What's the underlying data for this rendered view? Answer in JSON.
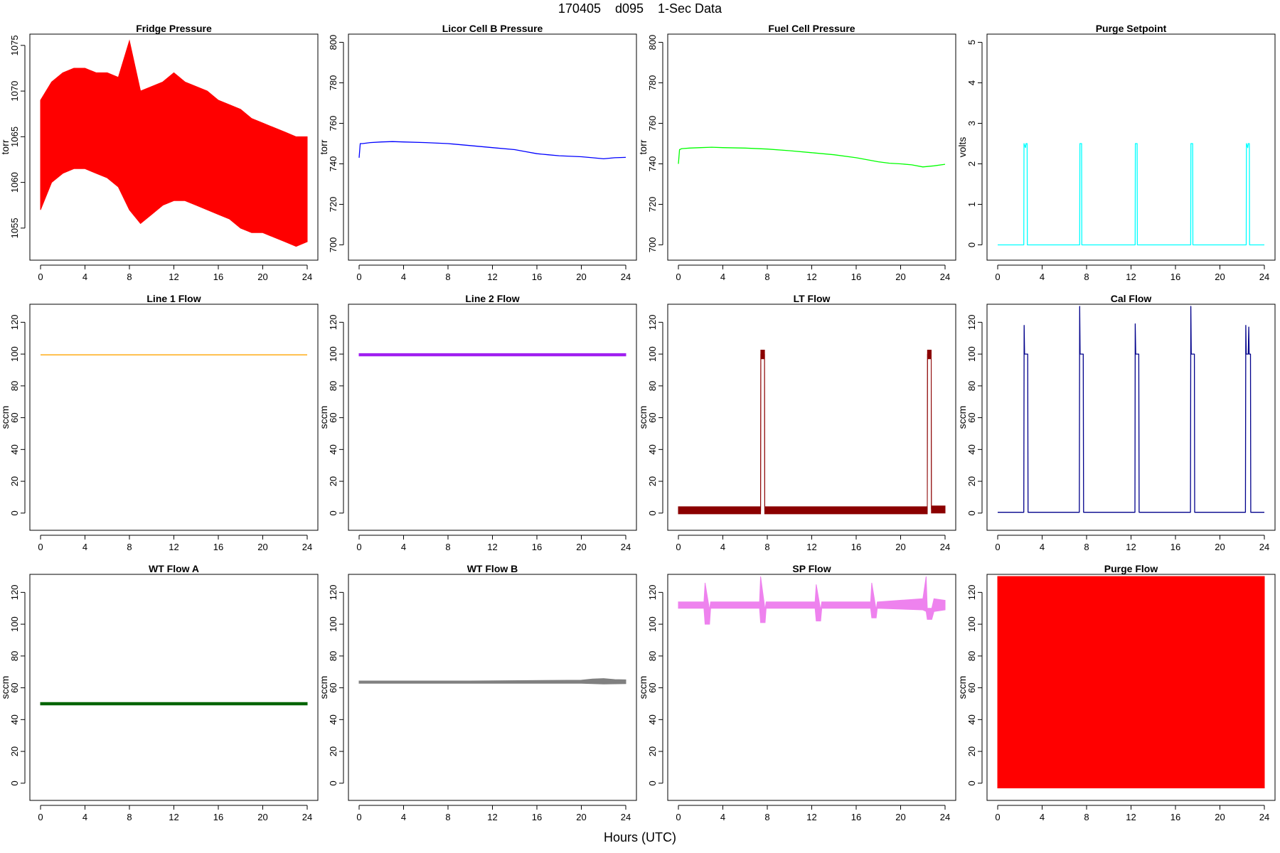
{
  "figure": {
    "title": "170405    d095    1-Sec Data",
    "xlabel": "Hours (UTC)"
  },
  "chart_data": [
    {
      "type": "line",
      "title": "Fridge Pressure",
      "ylabel": "torr",
      "color": "#ff0000",
      "xlim": [
        0,
        24
      ],
      "ylim": [
        1052.5,
        1076
      ],
      "xticks": [
        0,
        4,
        8,
        12,
        16,
        20,
        24
      ],
      "yticks": [
        1055,
        1060,
        1065,
        1070,
        1075
      ],
      "style": "band",
      "x": [
        0,
        1,
        2,
        3,
        4,
        5,
        6,
        7,
        8,
        9,
        10,
        11,
        12,
        13,
        14,
        15,
        16,
        17,
        18,
        19,
        20,
        21,
        22,
        23,
        24
      ],
      "y": [
        1065,
        1065.5,
        1066,
        1066,
        1066.5,
        1066,
        1065.5,
        1065,
        1063,
        1061.5,
        1062.5,
        1063,
        1063.5,
        1063,
        1062.5,
        1062,
        1061.5,
        1061,
        1060.5,
        1060,
        1060,
        1059.5,
        1059,
        1058.5,
        1058.5
      ],
      "y_min": [
        1057,
        1060,
        1061,
        1061.5,
        1061.5,
        1061,
        1060.5,
        1059.5,
        1057,
        1055.5,
        1056.5,
        1057.5,
        1058,
        1058,
        1057.5,
        1057,
        1056.5,
        1056,
        1055,
        1054.5,
        1054.5,
        1054,
        1053.5,
        1053,
        1053.5
      ],
      "y_max": [
        1069,
        1071,
        1072,
        1072.5,
        1072.5,
        1072,
        1072,
        1071.5,
        1075.5,
        1070,
        1070.5,
        1071,
        1072,
        1071,
        1070.5,
        1070,
        1069,
        1068.5,
        1068,
        1067,
        1066.5,
        1066,
        1065.5,
        1065,
        1065
      ]
    },
    {
      "type": "line",
      "title": "Licor Cell B Pressure",
      "ylabel": "torr",
      "color": "#0000ff",
      "xlim": [
        0,
        24
      ],
      "ylim": [
        697,
        803
      ],
      "xticks": [
        0,
        4,
        8,
        12,
        16,
        20,
        24
      ],
      "yticks": [
        700,
        720,
        740,
        760,
        780,
        800
      ],
      "x": [
        0,
        0.1,
        0.3,
        1,
        2,
        3,
        4,
        6,
        8,
        10,
        12,
        14,
        15,
        16,
        17,
        18,
        20,
        21,
        22,
        23,
        24
      ],
      "y": [
        743,
        750,
        750,
        750.5,
        750.8,
        751,
        750.8,
        750.5,
        750,
        749,
        748,
        747,
        746,
        745,
        744.5,
        744,
        743.5,
        743,
        742.5,
        743,
        743.2
      ]
    },
    {
      "type": "line",
      "title": "Fuel Cell Pressure",
      "ylabel": "torr",
      "color": "#00ff00",
      "xlim": [
        0,
        24
      ],
      "ylim": [
        697,
        803
      ],
      "xticks": [
        0,
        4,
        8,
        12,
        16,
        20,
        24
      ],
      "yticks": [
        700,
        720,
        740,
        760,
        780,
        800
      ],
      "x": [
        0,
        0.1,
        0.3,
        1,
        2,
        3,
        4,
        6,
        8,
        10,
        12,
        14,
        16,
        18,
        19,
        20,
        21,
        22,
        23,
        24
      ],
      "y": [
        740,
        747,
        747.5,
        747.8,
        748,
        748.2,
        748,
        747.8,
        747.3,
        746.5,
        745.5,
        744.5,
        743,
        741,
        740.3,
        740,
        739.5,
        738.5,
        739,
        739.8
      ]
    },
    {
      "type": "line",
      "title": "Purge Setpoint",
      "ylabel": "volts",
      "color": "#00ffff",
      "xlim": [
        0,
        24
      ],
      "ylim": [
        -0.15,
        5.15
      ],
      "xticks": [
        0,
        4,
        8,
        12,
        16,
        20,
        24
      ],
      "yticks": [
        0,
        1,
        2,
        3,
        4,
        5
      ],
      "x": [
        0,
        2.35,
        2.37,
        2.5,
        2.55,
        2.65,
        2.67,
        7.38,
        7.4,
        7.55,
        7.57,
        12.37,
        12.39,
        12.55,
        12.57,
        17.37,
        17.39,
        17.55,
        17.57,
        22.37,
        22.39,
        22.5,
        22.55,
        22.65,
        22.67,
        24
      ],
      "y": [
        0,
        0,
        2.5,
        2.4,
        2.5,
        2.5,
        0,
        0,
        2.5,
        2.5,
        0,
        0,
        2.5,
        2.5,
        0,
        0,
        2.5,
        2.5,
        0,
        0,
        2.5,
        2.4,
        2.5,
        2.5,
        0,
        0
      ]
    },
    {
      "type": "line",
      "title": "Line 1 Flow",
      "ylabel": "sccm",
      "color": "#ffa500",
      "xlim": [
        0,
        24
      ],
      "ylim": [
        -5,
        130
      ],
      "xticks": [
        0,
        4,
        8,
        12,
        16,
        20,
        24
      ],
      "yticks": [
        0,
        20,
        40,
        60,
        80,
        100,
        120
      ],
      "x": [
        0,
        24
      ],
      "y": [
        99.5,
        99.5
      ]
    },
    {
      "type": "line",
      "title": "Line 2 Flow",
      "ylabel": "sccm",
      "color": "#a020f0",
      "xlim": [
        0,
        24
      ],
      "ylim": [
        -5,
        130
      ],
      "xticks": [
        0,
        4,
        8,
        12,
        16,
        20,
        24
      ],
      "yticks": [
        0,
        20,
        40,
        60,
        80,
        100,
        120
      ],
      "style": "band",
      "x": [
        0,
        24
      ],
      "y": [
        99.5,
        99.5
      ],
      "y_min": [
        98.8,
        98.8
      ],
      "y_max": [
        100.3,
        100.3
      ]
    },
    {
      "type": "line",
      "title": "LT Flow",
      "ylabel": "sccm",
      "color": "#8b0000",
      "xlim": [
        0,
        24
      ],
      "ylim": [
        -5,
        130
      ],
      "xticks": [
        0,
        4,
        8,
        12,
        16,
        20,
        24
      ],
      "yticks": [
        0,
        20,
        40,
        60,
        80,
        100,
        120
      ],
      "style": "band",
      "x": [
        0,
        7.4,
        7.42,
        7.75,
        7.77,
        22.4,
        22.42,
        22.75,
        22.77,
        24
      ],
      "y": [
        1.5,
        1.5,
        100,
        100,
        2,
        2,
        100,
        100,
        2.5,
        2.5
      ],
      "y_min": [
        -0.5,
        -0.5,
        97,
        97,
        -0.5,
        -0.5,
        97,
        97,
        0,
        0
      ],
      "y_max": [
        4,
        4,
        102.5,
        102.5,
        4,
        4,
        102.5,
        102.5,
        4.5,
        4.5
      ]
    },
    {
      "type": "line",
      "title": "Cal Flow",
      "ylabel": "sccm",
      "color": "#00008b",
      "xlim": [
        0,
        24
      ],
      "ylim": [
        -5,
        130
      ],
      "xticks": [
        0,
        4,
        8,
        12,
        16,
        20,
        24
      ],
      "yticks": [
        0,
        20,
        40,
        60,
        80,
        100,
        120
      ],
      "x": [
        0,
        2.35,
        2.38,
        2.42,
        2.5,
        2.7,
        2.73,
        7.35,
        7.38,
        7.42,
        7.5,
        7.7,
        7.73,
        12.35,
        12.38,
        12.42,
        12.5,
        12.7,
        12.73,
        17.35,
        17.38,
        17.42,
        17.5,
        17.7,
        17.73,
        22.3,
        22.33,
        22.37,
        22.45,
        22.55,
        22.6,
        22.63,
        22.67,
        22.75,
        22.78,
        24
      ],
      "y": [
        0.5,
        0.5,
        118,
        100,
        100,
        100,
        0.5,
        0.5,
        130,
        100,
        100,
        100,
        0.5,
        0.5,
        119,
        100,
        100,
        100,
        0.5,
        0.5,
        130,
        100,
        100,
        100,
        0.5,
        0.5,
        118,
        100,
        100,
        100,
        117,
        100,
        100,
        100,
        0.5,
        0.5
      ]
    },
    {
      "type": "line",
      "title": "WT Flow A",
      "ylabel": "sccm",
      "color": "#006400",
      "xlim": [
        0,
        24
      ],
      "ylim": [
        -5,
        130
      ],
      "xticks": [
        0,
        4,
        8,
        12,
        16,
        20,
        24
      ],
      "yticks": [
        0,
        20,
        40,
        60,
        80,
        100,
        120
      ],
      "style": "band",
      "x": [
        0,
        24
      ],
      "y": [
        50,
        50
      ],
      "y_min": [
        49.2,
        49.2
      ],
      "y_max": [
        50.8,
        50.8
      ]
    },
    {
      "type": "line",
      "title": "WT Flow B",
      "ylabel": "sccm",
      "color": "#808080",
      "xlim": [
        0,
        24
      ],
      "ylim": [
        -5,
        130
      ],
      "xticks": [
        0,
        4,
        8,
        12,
        16,
        20,
        24
      ],
      "yticks": [
        0,
        20,
        40,
        60,
        80,
        100,
        120
      ],
      "style": "band",
      "x": [
        0,
        10,
        20,
        21,
        22,
        23,
        24
      ],
      "y": [
        63.5,
        63.5,
        63.8,
        63.8,
        64,
        63.7,
        63.6
      ],
      "y_min": [
        62.8,
        62.8,
        62.8,
        62.6,
        62.4,
        62.5,
        62.6
      ],
      "y_max": [
        64.3,
        64.3,
        64.8,
        65.5,
        65.8,
        65.2,
        65
      ]
    },
    {
      "type": "line",
      "title": "SP Flow",
      "ylabel": "sccm",
      "color": "#ee82ee",
      "xlim": [
        0,
        24
      ],
      "ylim": [
        -5,
        130
      ],
      "xticks": [
        0,
        4,
        8,
        12,
        16,
        20,
        24
      ],
      "yticks": [
        0,
        20,
        40,
        60,
        80,
        100,
        120
      ],
      "style": "band",
      "x": [
        0,
        2.3,
        2.4,
        2.8,
        2.9,
        7.3,
        7.4,
        7.8,
        7.9,
        12.3,
        12.4,
        12.8,
        12.9,
        17.3,
        17.4,
        17.8,
        17.9,
        22,
        22.3,
        22.4,
        22.8,
        23,
        24
      ],
      "y": [
        112,
        112,
        107,
        107,
        112,
        112,
        107,
        107,
        112,
        112,
        107,
        107,
        112,
        112,
        107,
        107,
        112,
        112,
        112,
        107,
        107,
        112,
        112
      ],
      "y_min": [
        110,
        110,
        100,
        100,
        110,
        110,
        101,
        101,
        110,
        110,
        102,
        102,
        110,
        110,
        104,
        104,
        110,
        109,
        108,
        103,
        103,
        108,
        109
      ],
      "y_max": [
        114,
        114,
        126,
        109,
        114,
        114,
        130,
        109,
        114,
        114,
        125,
        109,
        114,
        114,
        126,
        109,
        114,
        116,
        130,
        110,
        110,
        116,
        115
      ]
    },
    {
      "type": "line",
      "title": "Purge Flow",
      "ylabel": "sccm",
      "color": "#ff0000",
      "xlim": [
        0,
        24
      ],
      "ylim": [
        -5,
        130
      ],
      "xticks": [
        0,
        4,
        8,
        12,
        16,
        20,
        24
      ],
      "yticks": [
        0,
        20,
        40,
        60,
        80,
        100,
        120
      ],
      "style": "band",
      "x": [
        0,
        24
      ],
      "y": [
        65,
        65
      ],
      "y_min": [
        -3,
        -3
      ],
      "y_max": [
        130,
        130
      ]
    }
  ]
}
